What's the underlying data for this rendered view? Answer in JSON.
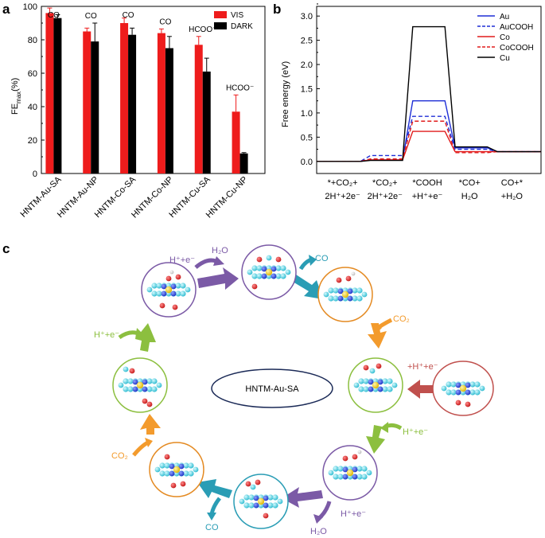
{
  "panels": {
    "a": "a",
    "b": "b",
    "c": "c"
  },
  "chart_data": [
    {
      "id": "a",
      "type": "bar",
      "ylabel_main": "FE",
      "ylabel_sub": "max",
      "ylabel_unit": "(%)",
      "ylim": [
        0,
        100
      ],
      "yticks": [
        "0",
        "20",
        "40",
        "60",
        "80",
        "100"
      ],
      "categories": [
        "HNTM-Au-SA",
        "HNTM-Au-NP",
        "HNTM-Co-SA",
        "HNTM-Co-NP",
        "HNTM-Cu-SA",
        "HNTM-Cu-NP"
      ],
      "series": [
        {
          "name": "VIS",
          "color": "#ee1c1c",
          "values": [
            96,
            85,
            90,
            84,
            77,
            37
          ],
          "errors": [
            3,
            2,
            3,
            2.5,
            5,
            10
          ]
        },
        {
          "name": "DARK",
          "color": "#000000",
          "values": [
            93,
            79,
            83,
            75,
            61,
            12
          ],
          "errors": [
            2,
            11,
            4,
            7,
            8,
            0.5
          ]
        }
      ],
      "products": [
        "CO",
        "CO",
        "CO",
        "CO",
        "HCOO⁻",
        "HCOO⁻"
      ]
    },
    {
      "id": "b",
      "type": "line",
      "ylabel": "Free energy (eV)",
      "ylim": [
        -0.25,
        3.2
      ],
      "yticks": [
        "0.0",
        "0.5",
        "1.0",
        "1.5",
        "2.0",
        "2.5",
        "3.0"
      ],
      "step_labels": [
        {
          "l1": "*+CO₂+",
          "l2": "2H⁺+2e⁻"
        },
        {
          "l1": "*CO₂+",
          "l2": "2H⁺+2e⁻"
        },
        {
          "l1": "*COOH",
          "l2": "+H⁺+e⁻"
        },
        {
          "l1": "*CO+",
          "l2": "H₂O"
        },
        {
          "l1": "CO+*",
          "l2": "+H₂O"
        }
      ],
      "series": [
        {
          "name": "Au",
          "color": "#1f2fd6",
          "dash": false,
          "values": [
            0.0,
            0.03,
            1.25,
            0.28,
            0.2
          ]
        },
        {
          "name": "AuCOOH",
          "color": "#1f2fd6",
          "dash": true,
          "values": [
            0.0,
            0.12,
            0.93,
            0.25,
            0.2
          ]
        },
        {
          "name": "Co",
          "color": "#e11b1b",
          "dash": false,
          "values": [
            0.0,
            0.03,
            0.62,
            0.2,
            0.2
          ]
        },
        {
          "name": "CoCOOH",
          "color": "#e11b1b",
          "dash": true,
          "values": [
            0.0,
            0.05,
            0.83,
            0.18,
            0.2
          ]
        },
        {
          "name": "Cu",
          "color": "#000000",
          "dash": false,
          "values": [
            0.0,
            0.02,
            2.78,
            0.3,
            0.2
          ]
        }
      ]
    }
  ],
  "cycle": {
    "center_label": "HNTM-Au-SA",
    "labels": {
      "h2o_top": "H₂O",
      "hplus_top": "H⁺+e⁻",
      "co_top": "CO",
      "co2_right": "CO₂",
      "hplus_entry": "+H⁺+e⁻",
      "hplus_right": "H⁺+e⁻",
      "hplus_bottom": "H⁺+e⁻",
      "h2o_bottom": "H₂O",
      "co_bottom": "CO",
      "co2_left": "CO₂",
      "hplus_left": "H⁺+e⁻"
    },
    "colors": {
      "purple": "#7b5aa6",
      "teal": "#2a9db5",
      "orange": "#f39b2d",
      "green": "#8cbf3f",
      "red": "#c0504d",
      "navy": "#1b2a57"
    }
  }
}
